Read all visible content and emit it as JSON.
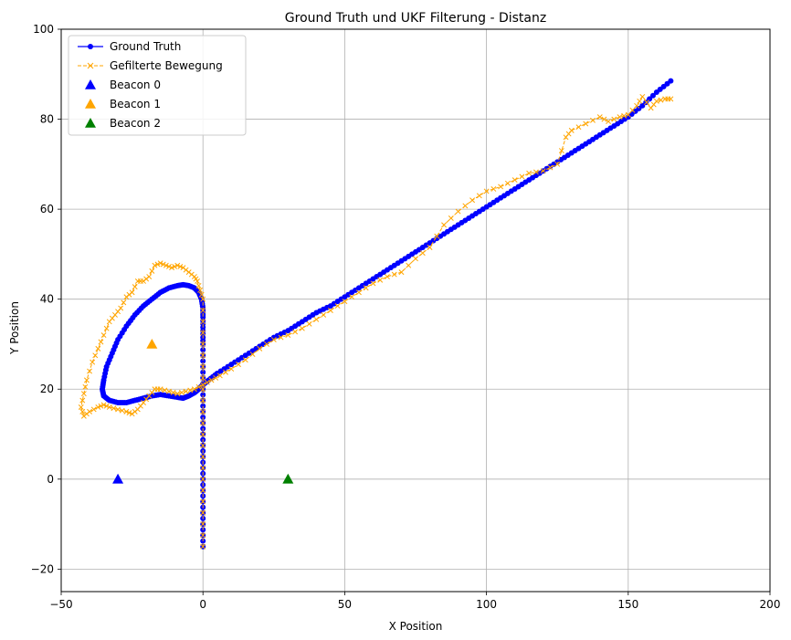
{
  "chart_data": {
    "type": "line",
    "title": "Ground Truth und UKF Filterung - Distanz",
    "xlabel": "X Position",
    "ylabel": "Y Position",
    "xlim": [
      -50,
      200
    ],
    "ylim": [
      -25,
      100
    ],
    "xticks": [
      -50,
      0,
      50,
      100,
      150,
      200
    ],
    "yticks": [
      -20,
      0,
      20,
      40,
      60,
      80,
      100
    ],
    "grid": true,
    "legend_position": "top-left",
    "series": [
      {
        "name": "Ground Truth",
        "color": "#0000ff",
        "style": "solid line with circle markers",
        "x": [
          0,
          0,
          0,
          0,
          0,
          0,
          0,
          0,
          0,
          0,
          0,
          0,
          0,
          -0.5,
          -1.5,
          -3,
          -5,
          -7,
          -9,
          -12,
          -15,
          -18,
          -21,
          -24,
          -27,
          -30,
          -32,
          -34,
          -35,
          -35.5,
          -35,
          -33,
          -30,
          -27,
          -24,
          -21,
          -18,
          -15,
          -12,
          -9,
          -7,
          -5,
          -3,
          -1.5,
          0,
          2,
          5,
          10,
          15,
          20,
          25,
          30,
          35,
          40,
          45,
          50,
          55,
          60,
          65,
          70,
          75,
          80,
          85,
          90,
          95,
          100,
          105,
          110,
          115,
          120,
          125,
          130,
          135,
          140,
          145,
          150,
          155,
          160,
          165
        ],
        "y": [
          -15,
          -10,
          -5,
          0,
          5,
          10,
          15,
          20,
          25,
          30,
          33,
          36,
          38,
          40,
          41.5,
          42.5,
          43,
          43.2,
          43,
          42.5,
          41.5,
          40,
          38.5,
          36.5,
          34,
          31,
          28,
          25,
          22,
          20,
          18.5,
          17.5,
          17,
          17,
          17.5,
          18,
          18.5,
          18.8,
          18.5,
          18.2,
          18,
          18.5,
          19.2,
          20,
          21,
          22,
          23.5,
          25.5,
          27.5,
          29.5,
          31.5,
          33,
          35,
          37,
          38.5,
          40.5,
          42.5,
          44.5,
          46.5,
          48.5,
          50.5,
          52.5,
          54.5,
          56.5,
          58.5,
          60.5,
          62.5,
          64.5,
          66.5,
          68.5,
          70.5,
          72.5,
          74.5,
          76.5,
          78.5,
          80.5,
          83,
          86,
          88.5
        ]
      },
      {
        "name": "Gefilterte Bewegung",
        "color": "#ffa500",
        "style": "dashed line with x markers",
        "x": [
          0,
          0,
          0,
          0,
          0,
          0,
          0,
          0,
          0,
          0,
          0,
          0,
          -1,
          -2,
          -3,
          -5,
          -7,
          -9,
          -11,
          -13,
          -15,
          -17,
          -19,
          -21,
          -23,
          -25,
          -27,
          -29,
          -31,
          -33,
          -35,
          -37,
          -39,
          -41,
          -42,
          -43,
          -42,
          -40,
          -37,
          -35,
          -33,
          -30,
          -27,
          -25,
          -23,
          -21,
          -19,
          -17,
          -15,
          -12,
          -9,
          -6,
          -3,
          0,
          3,
          6,
          10,
          15,
          20,
          25,
          30,
          35,
          40,
          45,
          50,
          55,
          60,
          65,
          70,
          75,
          80,
          85,
          90,
          95,
          100,
          105,
          110,
          115,
          120,
          125,
          128,
          130,
          135,
          140,
          143,
          147,
          150,
          153,
          155,
          158,
          160,
          163,
          165
        ],
        "y": [
          -15,
          -10,
          -5,
          0,
          5,
          10,
          15,
          20,
          25,
          30,
          35,
          40,
          42,
          44,
          45,
          46,
          47,
          47.5,
          47,
          47.5,
          48,
          47.5,
          45,
          44,
          44,
          41.5,
          40.5,
          38,
          36.5,
          35,
          32,
          29,
          26,
          22,
          19,
          16,
          14,
          15,
          16,
          16.5,
          16,
          15.5,
          15,
          14.5,
          15.5,
          17,
          18.5,
          20,
          20,
          19.5,
          19,
          19.5,
          20,
          21,
          22,
          23,
          24.5,
          26.5,
          29,
          31,
          32,
          33.5,
          35.5,
          37.5,
          39.5,
          41.5,
          43.5,
          45,
          46,
          49,
          51.5,
          56.5,
          59.5,
          62,
          64,
          65,
          66.5,
          68,
          68.5,
          70,
          76,
          77.5,
          79,
          80.5,
          79.5,
          80.5,
          81,
          83,
          85,
          82.5,
          84,
          84.5,
          84.5
        ]
      }
    ],
    "beacons": [
      {
        "name": "Beacon 0",
        "x": -30,
        "y": 0,
        "color": "#0000ff"
      },
      {
        "name": "Beacon 1",
        "x": -18,
        "y": 30,
        "color": "#ffa500"
      },
      {
        "name": "Beacon 2",
        "x": 30,
        "y": 0,
        "color": "#008000"
      }
    ]
  }
}
